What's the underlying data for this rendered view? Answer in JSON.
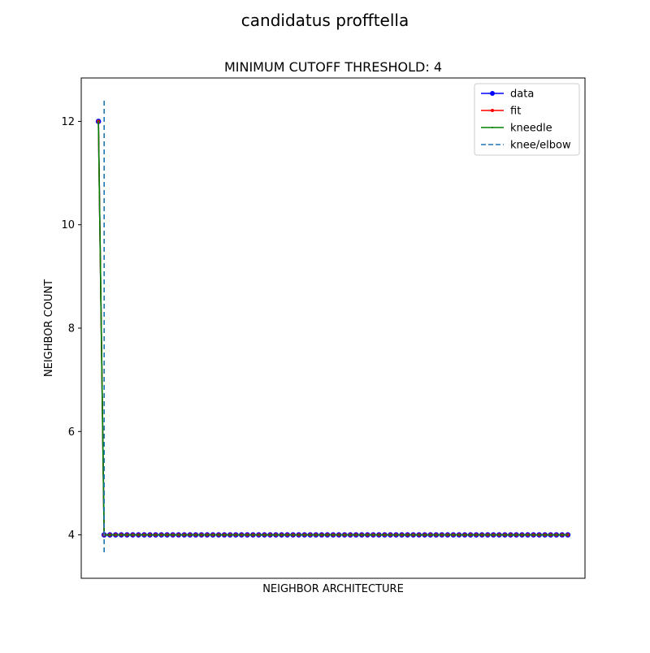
{
  "figure": {
    "suptitle": "candidatus profftella"
  },
  "chart_data": {
    "type": "line",
    "title": "MINIMUM CUTOFF THRESHOLD: 4",
    "xlabel": "NEIGHBOR ARCHITECTURE",
    "ylabel": "NEIGHBOR COUNT",
    "x_ticks_shown": false,
    "yticks": [
      4,
      6,
      8,
      10,
      12
    ],
    "ylim": [
      3.16,
      12.84
    ],
    "xlim": [
      -3.0,
      85.0
    ],
    "grid": false,
    "legend_position": "top-right",
    "knee_x": 1,
    "knee_line_yrange": [
      3.6,
      12.4
    ],
    "series": [
      {
        "name": "data",
        "color": "#0000ff",
        "marker": "circle",
        "x": [
          0,
          1,
          2,
          3,
          4,
          5,
          6,
          7,
          8,
          9,
          10,
          11,
          12,
          13,
          14,
          15,
          16,
          17,
          18,
          19,
          20,
          21,
          22,
          23,
          24,
          25,
          26,
          27,
          28,
          29,
          30,
          31,
          32,
          33,
          34,
          35,
          36,
          37,
          38,
          39,
          40,
          41,
          42,
          43,
          44,
          45,
          46,
          47,
          48,
          49,
          50,
          51,
          52,
          53,
          54,
          55,
          56,
          57,
          58,
          59,
          60,
          61,
          62,
          63,
          64,
          65,
          66,
          67,
          68,
          69,
          70,
          71,
          72,
          73,
          74,
          75,
          76,
          77,
          78,
          79,
          80,
          81,
          82
        ],
        "values": [
          12,
          4,
          4,
          4,
          4,
          4,
          4,
          4,
          4,
          4,
          4,
          4,
          4,
          4,
          4,
          4,
          4,
          4,
          4,
          4,
          4,
          4,
          4,
          4,
          4,
          4,
          4,
          4,
          4,
          4,
          4,
          4,
          4,
          4,
          4,
          4,
          4,
          4,
          4,
          4,
          4,
          4,
          4,
          4,
          4,
          4,
          4,
          4,
          4,
          4,
          4,
          4,
          4,
          4,
          4,
          4,
          4,
          4,
          4,
          4,
          4,
          4,
          4,
          4,
          4,
          4,
          4,
          4,
          4,
          4,
          4,
          4,
          4,
          4,
          4,
          4,
          4,
          4,
          4,
          4,
          4,
          4,
          4
        ]
      },
      {
        "name": "fit",
        "color": "#ff0000",
        "marker": "small-circle",
        "x": [
          0,
          1,
          2,
          3,
          4,
          5,
          6,
          7,
          8,
          9,
          10,
          11,
          12,
          13,
          14,
          15,
          16,
          17,
          18,
          19,
          20,
          21,
          22,
          23,
          24,
          25,
          26,
          27,
          28,
          29,
          30,
          31,
          32,
          33,
          34,
          35,
          36,
          37,
          38,
          39,
          40,
          41,
          42,
          43,
          44,
          45,
          46,
          47,
          48,
          49,
          50,
          51,
          52,
          53,
          54,
          55,
          56,
          57,
          58,
          59,
          60,
          61,
          62,
          63,
          64,
          65,
          66,
          67,
          68,
          69,
          70,
          71,
          72,
          73,
          74,
          75,
          76,
          77,
          78,
          79,
          80,
          81,
          82
        ],
        "values": [
          12,
          4,
          4,
          4,
          4,
          4,
          4,
          4,
          4,
          4,
          4,
          4,
          4,
          4,
          4,
          4,
          4,
          4,
          4,
          4,
          4,
          4,
          4,
          4,
          4,
          4,
          4,
          4,
          4,
          4,
          4,
          4,
          4,
          4,
          4,
          4,
          4,
          4,
          4,
          4,
          4,
          4,
          4,
          4,
          4,
          4,
          4,
          4,
          4,
          4,
          4,
          4,
          4,
          4,
          4,
          4,
          4,
          4,
          4,
          4,
          4,
          4,
          4,
          4,
          4,
          4,
          4,
          4,
          4,
          4,
          4,
          4,
          4,
          4,
          4,
          4,
          4,
          4,
          4,
          4,
          4,
          4,
          4
        ]
      },
      {
        "name": "kneedle",
        "color": "#008000",
        "marker": "point",
        "x": [
          0,
          1,
          2,
          3,
          4,
          5,
          6,
          7,
          8,
          9,
          10,
          11,
          12,
          13,
          14,
          15,
          16,
          17,
          18,
          19,
          20,
          21,
          22,
          23,
          24,
          25,
          26,
          27,
          28,
          29,
          30,
          31,
          32,
          33,
          34,
          35,
          36,
          37,
          38,
          39,
          40,
          41,
          42,
          43,
          44,
          45,
          46,
          47,
          48,
          49,
          50,
          51,
          52,
          53,
          54,
          55,
          56,
          57,
          58,
          59,
          60,
          61,
          62,
          63,
          64,
          65,
          66,
          67,
          68,
          69,
          70,
          71,
          72,
          73,
          74,
          75,
          76,
          77,
          78,
          79,
          80,
          81,
          82
        ],
        "values": [
          12,
          4,
          4,
          4,
          4,
          4,
          4,
          4,
          4,
          4,
          4,
          4,
          4,
          4,
          4,
          4,
          4,
          4,
          4,
          4,
          4,
          4,
          4,
          4,
          4,
          4,
          4,
          4,
          4,
          4,
          4,
          4,
          4,
          4,
          4,
          4,
          4,
          4,
          4,
          4,
          4,
          4,
          4,
          4,
          4,
          4,
          4,
          4,
          4,
          4,
          4,
          4,
          4,
          4,
          4,
          4,
          4,
          4,
          4,
          4,
          4,
          4,
          4,
          4,
          4,
          4,
          4,
          4,
          4,
          4,
          4,
          4,
          4,
          4,
          4,
          4,
          4,
          4,
          4,
          4,
          4,
          4,
          4
        ]
      }
    ],
    "knee_line": {
      "name": "knee/elbow",
      "color": "#1f77b4",
      "style": "dashed"
    }
  }
}
